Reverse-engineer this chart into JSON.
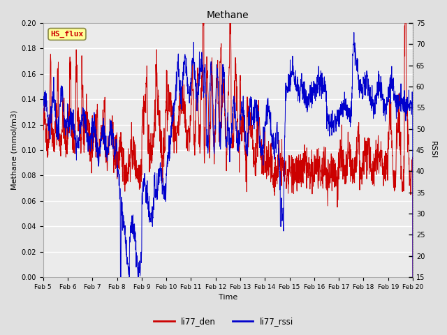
{
  "title": "Methane",
  "xlabel": "Time",
  "ylabel_left": "Methane (mmol/m3)",
  "ylabel_right": "RSSI",
  "ylim_left": [
    0.0,
    0.2
  ],
  "ylim_right": [
    15,
    75
  ],
  "yticks_left": [
    0.0,
    0.02,
    0.04,
    0.06,
    0.08,
    0.1,
    0.12,
    0.14,
    0.16,
    0.18,
    0.2
  ],
  "yticks_right": [
    15,
    20,
    25,
    30,
    35,
    40,
    45,
    50,
    55,
    60,
    65,
    70,
    75
  ],
  "xtick_labels": [
    "Feb 5",
    "Feb 6",
    "Feb 7",
    "Feb 8",
    "Feb 9",
    "Feb 10",
    "Feb 11",
    "Feb 12",
    "Feb 13",
    "Feb 14",
    "Feb 15",
    "Feb 16",
    "Feb 17",
    "Feb 18",
    "Feb 19",
    "Feb 20"
  ],
  "color_red": "#cc0000",
  "color_blue": "#0000cc",
  "color_bg": "#e0e0e0",
  "color_plot_bg": "#ebebeb",
  "color_grid": "#ffffff",
  "annotation_text": "HS_flux",
  "annotation_color": "#cc0000",
  "annotation_bg": "#ffff99",
  "annotation_border": "#888844",
  "legend_labels": [
    "li77_den",
    "li77_rssi"
  ],
  "figsize": [
    6.4,
    4.8
  ],
  "dpi": 100,
  "seed": 12345
}
